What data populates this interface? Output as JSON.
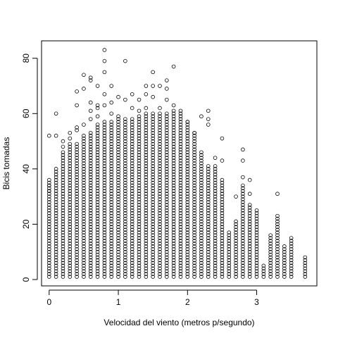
{
  "chart_data": {
    "type": "scatter",
    "title": "",
    "xlabel": "Velocidad del viento (metros p/segundo)",
    "ylabel": "Bicis tomadas",
    "xlim": [
      -0.11,
      3.87
    ],
    "ylim": [
      -2.3,
      86.3
    ],
    "x_ticks": [
      0,
      1,
      2,
      3
    ],
    "x_tick_labels": [
      "0",
      "1",
      "2",
      "3"
    ],
    "y_ticks": [
      0,
      20,
      40,
      60,
      80
    ],
    "y_tick_labels": [
      "0",
      "20",
      "40",
      "60",
      "80"
    ],
    "grid": false,
    "marker": "open-circle",
    "point_color": "#000000",
    "x_step": 0.1,
    "x_values": [
      0,
      0.1,
      0.2,
      0.3,
      0.4,
      0.5,
      0.6,
      0.7,
      0.8,
      0.9,
      1.0,
      1.1,
      1.2,
      1.3,
      1.4,
      1.5,
      1.6,
      1.7,
      1.8,
      1.9,
      2.0,
      2.1,
      2.2,
      2.3,
      2.4,
      2.5,
      2.6,
      2.7,
      2.8,
      2.9,
      3.0,
      3.1,
      3.2,
      3.3,
      3.4,
      3.5,
      3.7
    ],
    "column_min_y": 1,
    "column_max_y": [
      36,
      40,
      46,
      49,
      49,
      52,
      53,
      56,
      57,
      57,
      58,
      58,
      58,
      59,
      60,
      60,
      60,
      60,
      61,
      61,
      57,
      53,
      46,
      41,
      41,
      36,
      17,
      21,
      34,
      27,
      25,
      5,
      16,
      23,
      12,
      15,
      8
    ],
    "outliers": [
      {
        "x": 0.0,
        "y": 52
      },
      {
        "x": 0.0,
        "y": 34
      },
      {
        "x": 0.0,
        "y": 32
      },
      {
        "x": 0.1,
        "y": 60
      },
      {
        "x": 0.1,
        "y": 52
      },
      {
        "x": 0.2,
        "y": 50
      },
      {
        "x": 0.2,
        "y": 48
      },
      {
        "x": 0.3,
        "y": 53
      },
      {
        "x": 0.3,
        "y": 51
      },
      {
        "x": 0.4,
        "y": 68
      },
      {
        "x": 0.4,
        "y": 63
      },
      {
        "x": 0.4,
        "y": 55
      },
      {
        "x": 0.4,
        "y": 54
      },
      {
        "x": 0.5,
        "y": 74
      },
      {
        "x": 0.5,
        "y": 69
      },
      {
        "x": 0.5,
        "y": 56
      },
      {
        "x": 0.6,
        "y": 73
      },
      {
        "x": 0.6,
        "y": 72
      },
      {
        "x": 0.6,
        "y": 64
      },
      {
        "x": 0.6,
        "y": 61
      },
      {
        "x": 0.6,
        "y": 58
      },
      {
        "x": 0.7,
        "y": 70
      },
      {
        "x": 0.7,
        "y": 63
      },
      {
        "x": 0.7,
        "y": 62
      },
      {
        "x": 0.7,
        "y": 59
      },
      {
        "x": 0.8,
        "y": 83
      },
      {
        "x": 0.8,
        "y": 79
      },
      {
        "x": 0.8,
        "y": 75
      },
      {
        "x": 0.8,
        "y": 67
      },
      {
        "x": 0.8,
        "y": 63
      },
      {
        "x": 0.9,
        "y": 70
      },
      {
        "x": 0.9,
        "y": 64
      },
      {
        "x": 0.9,
        "y": 60
      },
      {
        "x": 1.0,
        "y": 66
      },
      {
        "x": 1.0,
        "y": 59
      },
      {
        "x": 1.1,
        "y": 79
      },
      {
        "x": 1.1,
        "y": 65
      },
      {
        "x": 1.2,
        "y": 67
      },
      {
        "x": 1.2,
        "y": 62
      },
      {
        "x": 1.3,
        "y": 65
      },
      {
        "x": 1.3,
        "y": 61
      },
      {
        "x": 1.4,
        "y": 70
      },
      {
        "x": 1.4,
        "y": 67
      },
      {
        "x": 1.4,
        "y": 62
      },
      {
        "x": 1.5,
        "y": 75
      },
      {
        "x": 1.5,
        "y": 70
      },
      {
        "x": 1.5,
        "y": 66
      },
      {
        "x": 1.6,
        "y": 70
      },
      {
        "x": 1.6,
        "y": 62
      },
      {
        "x": 1.7,
        "y": 72
      },
      {
        "x": 1.7,
        "y": 69
      },
      {
        "x": 1.7,
        "y": 65
      },
      {
        "x": 1.8,
        "y": 77
      },
      {
        "x": 1.8,
        "y": 63
      },
      {
        "x": 2.0,
        "y": 57
      },
      {
        "x": 2.1,
        "y": 53
      },
      {
        "x": 2.2,
        "y": 59
      },
      {
        "x": 2.3,
        "y": 61
      },
      {
        "x": 2.3,
        "y": 58
      },
      {
        "x": 2.3,
        "y": 56
      },
      {
        "x": 2.4,
        "y": 44
      },
      {
        "x": 2.5,
        "y": 51
      },
      {
        "x": 2.5,
        "y": 43
      },
      {
        "x": 2.7,
        "y": 30
      },
      {
        "x": 2.8,
        "y": 47
      },
      {
        "x": 2.8,
        "y": 43
      },
      {
        "x": 2.8,
        "y": 37
      },
      {
        "x": 2.9,
        "y": 36
      },
      {
        "x": 2.9,
        "y": 31
      },
      {
        "x": 3.3,
        "y": 31
      }
    ]
  }
}
